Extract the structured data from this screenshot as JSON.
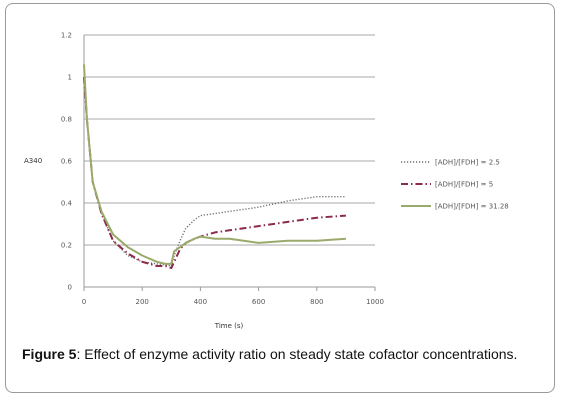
{
  "chart_data": {
    "type": "line",
    "xlabel": "Time (s)",
    "ylabel": "A340",
    "xlim": [
      0,
      1000
    ],
    "ylim": [
      0,
      1.2
    ],
    "x_ticks": [
      "0",
      "200",
      "400",
      "600",
      "800",
      "1000"
    ],
    "y_ticks": [
      "0",
      "0.2",
      "0.4",
      "0.6",
      "0.8",
      "1",
      "1.2"
    ],
    "grid": "horizontal",
    "legend_position": "right",
    "series": [
      {
        "name": "[ADH]/[FDH] = 2.5",
        "color": "#6e6e6e",
        "style": "dotted",
        "x": [
          0,
          10,
          30,
          60,
          100,
          150,
          200,
          250,
          280,
          300,
          310,
          330,
          350,
          380,
          400,
          450,
          500,
          600,
          700,
          800,
          900
        ],
        "y": [
          1.0,
          0.8,
          0.5,
          0.35,
          0.22,
          0.15,
          0.12,
          0.11,
          0.105,
          0.1,
          0.15,
          0.22,
          0.28,
          0.32,
          0.34,
          0.35,
          0.36,
          0.38,
          0.41,
          0.43,
          0.43
        ]
      },
      {
        "name": "[ADH]/[FDH] = 5",
        "color": "#8b2a4a",
        "style": "dashdot",
        "x": [
          0,
          10,
          30,
          60,
          100,
          150,
          200,
          250,
          280,
          300,
          310,
          330,
          350,
          380,
          400,
          450,
          500,
          600,
          700,
          800,
          900
        ],
        "y": [
          1.0,
          0.8,
          0.5,
          0.35,
          0.22,
          0.16,
          0.12,
          0.1,
          0.1,
          0.09,
          0.12,
          0.18,
          0.21,
          0.23,
          0.24,
          0.26,
          0.27,
          0.29,
          0.31,
          0.33,
          0.34
        ]
      },
      {
        "name": "[ADH]/[FDH] = 31.28",
        "color": "#9aaa6a",
        "style": "solid",
        "x": [
          0,
          10,
          30,
          60,
          100,
          150,
          200,
          250,
          280,
          300,
          310,
          330,
          350,
          380,
          400,
          450,
          500,
          600,
          700,
          800,
          900
        ],
        "y": [
          1.06,
          0.8,
          0.5,
          0.36,
          0.25,
          0.19,
          0.15,
          0.12,
          0.11,
          0.11,
          0.17,
          0.19,
          0.21,
          0.23,
          0.24,
          0.23,
          0.23,
          0.21,
          0.22,
          0.22,
          0.23
        ]
      }
    ]
  },
  "caption": {
    "label": "Figure 5",
    "text": ": Effect of enzyme activity ratio on steady state cofactor concentrations."
  }
}
